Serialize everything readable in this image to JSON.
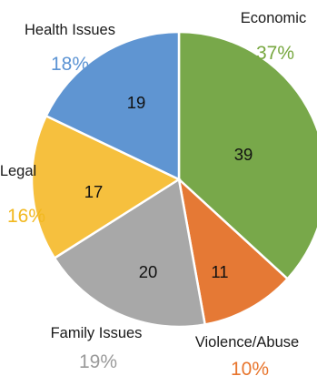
{
  "chart_data": {
    "type": "pie",
    "title": "",
    "slices": [
      {
        "label": "Economic",
        "value": 39,
        "percent": "37%",
        "color": "#78a84a",
        "label_color": "#77a73f"
      },
      {
        "label": "Violence/Abuse",
        "value": 11,
        "percent": "10%",
        "color": "#e57935",
        "label_color": "#e8762e"
      },
      {
        "label": "Family Issues",
        "value": 20,
        "percent": "19%",
        "color": "#a8a8a8",
        "label_color": "#9a9a9a"
      },
      {
        "label": "Legal",
        "value": 17,
        "percent": "16%",
        "color": "#f6c03e",
        "label_color": "#f2b81f"
      },
      {
        "label": "Health Issues",
        "value": 19,
        "percent": "18%",
        "color": "#5f95d2",
        "label_color": "#5b93d3"
      }
    ],
    "legend": "none",
    "start_angle": "12 o'clock, clockwise"
  }
}
